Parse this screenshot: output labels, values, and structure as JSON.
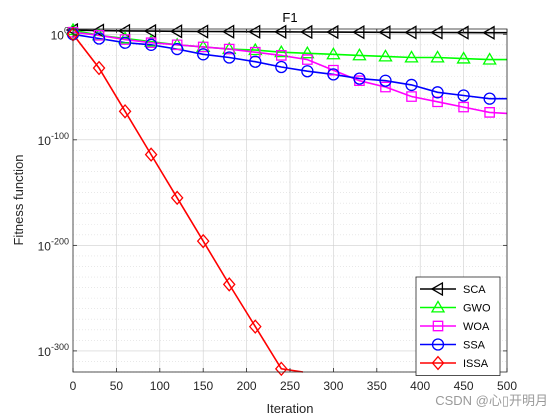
{
  "chart_data": {
    "type": "line",
    "title": "F1",
    "xlabel": "Iteration",
    "ylabel": "Fitness function",
    "xlim": [
      0,
      500
    ],
    "ylim_log10": [
      -320,
      5
    ],
    "yscale": "log",
    "grid": true,
    "legend_position": "bottom-right",
    "x_ticks": [
      "0",
      "50",
      "100",
      "150",
      "200",
      "250",
      "300",
      "350",
      "400",
      "450",
      "500"
    ],
    "y_ticks": [
      {
        "base": "10",
        "exp": "0",
        "log10": 0
      },
      {
        "base": "10",
        "exp": "-100",
        "log10": -100
      },
      {
        "base": "10",
        "exp": "-200",
        "log10": -200
      },
      {
        "base": "10",
        "exp": "-300",
        "log10": -300
      }
    ],
    "series": [
      {
        "name": "SCA",
        "color": "#000000",
        "marker": "triangle-left",
        "x": [
          0,
          30,
          60,
          90,
          120,
          150,
          180,
          210,
          240,
          270,
          300,
          330,
          360,
          390,
          420,
          450,
          480,
          500
        ],
        "y_log10": [
          4,
          3.5,
          3.2,
          3.0,
          2.8,
          2.6,
          2.5,
          2.4,
          2.3,
          2.2,
          2.1,
          2.0,
          1.9,
          1.8,
          1.7,
          1.6,
          1.5,
          1.5
        ]
      },
      {
        "name": "GWO",
        "color": "#00ff00",
        "marker": "triangle-up",
        "x": [
          0,
          30,
          60,
          90,
          120,
          150,
          180,
          210,
          240,
          270,
          300,
          330,
          360,
          390,
          420,
          450,
          480,
          500
        ],
        "y_log10": [
          4,
          -1,
          -4,
          -7,
          -10,
          -12,
          -14,
          -15,
          -17,
          -18,
          -19,
          -20,
          -21,
          -22,
          -22,
          -23,
          -24,
          -24
        ]
      },
      {
        "name": "WOA",
        "color": "#ff00ff",
        "marker": "square",
        "x": [
          0,
          30,
          60,
          90,
          120,
          150,
          180,
          210,
          240,
          270,
          300,
          330,
          360,
          390,
          420,
          450,
          480,
          500
        ],
        "y_log10": [
          2,
          -1,
          -5,
          -8,
          -10,
          -12,
          -14,
          -17,
          -20,
          -24,
          -34,
          -44,
          -50,
          -59,
          -64,
          -69,
          -74,
          -75
        ]
      },
      {
        "name": "SSA",
        "color": "#0000ff",
        "marker": "circle",
        "x": [
          0,
          30,
          60,
          90,
          120,
          150,
          180,
          210,
          240,
          270,
          300,
          330,
          360,
          390,
          420,
          450,
          480,
          500
        ],
        "y_log10": [
          0,
          -4,
          -8,
          -10,
          -14,
          -19,
          -22,
          -26,
          -31,
          -35,
          -38,
          -42,
          -44,
          -48,
          -55,
          -58,
          -61,
          -61
        ]
      },
      {
        "name": "ISSA",
        "color": "#ff0000",
        "marker": "diamond",
        "x": [
          0,
          30,
          60,
          90,
          120,
          150,
          180,
          210,
          240,
          265
        ],
        "y_log10": [
          0,
          -32,
          -73,
          -114,
          -155,
          -196,
          -237,
          -277,
          -317,
          -320
        ]
      }
    ]
  },
  "watermark": "CSDN @心▯开明月"
}
